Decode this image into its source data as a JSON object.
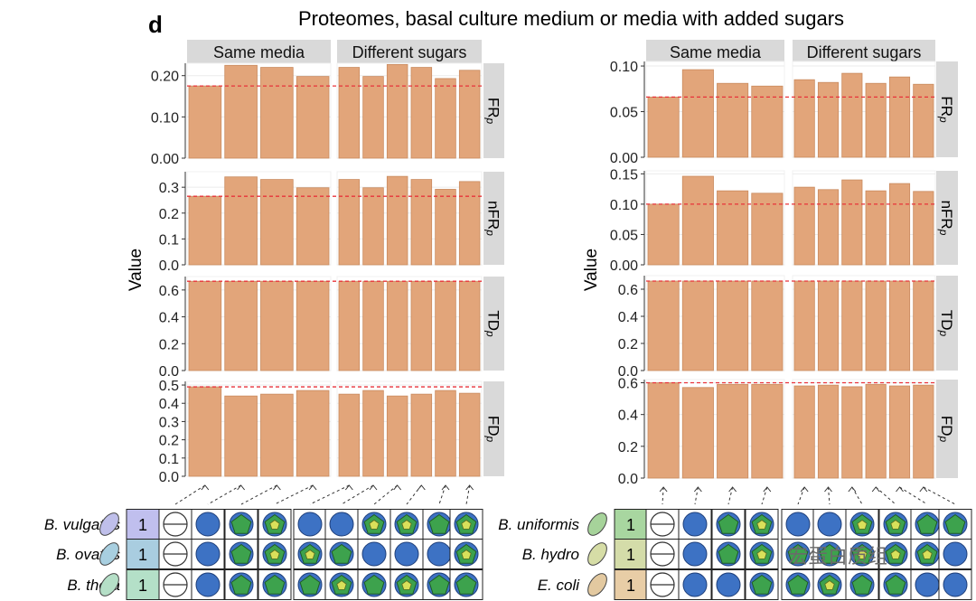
{
  "panel_letter": "d",
  "title": "Proteomes, basal culture medium or media with added sugars",
  "facet_columns": [
    "Same media",
    "Different sugars"
  ],
  "y_axis_label": "Value",
  "watermark": "宏蛋白质组",
  "colors": {
    "bar": "#E2A57A",
    "bar_edge": "#C98A5E",
    "ref_line": "#E8333A",
    "strip": "#D9D9D9",
    "grid": "#EBEBEB",
    "blue": "#3D72C4",
    "green": "#3DA24D",
    "yellow": "#D9E05A"
  },
  "chart_data": [
    {
      "type": "bar",
      "title": "Proteomes, basal culture medium or media with added sugars",
      "ylabel": "Value",
      "facets_x": [
        "Same media",
        "Different sugars"
      ],
      "rows": [
        {
          "label": "FRp",
          "ylim": [
            0,
            0.23
          ],
          "ticks": [
            0.0,
            0.1,
            0.2
          ],
          "tick_labels": [
            "0.00",
            "0.10",
            "0.20"
          ],
          "ref": 0.175,
          "same": [
            0.175,
            0.225,
            0.22,
            0.198
          ],
          "diff": [
            0.22,
            0.198,
            0.227,
            0.22,
            0.193,
            0.213
          ]
        },
        {
          "label": "nFRp",
          "ylim": [
            0,
            0.36
          ],
          "ticks": [
            0.0,
            0.1,
            0.2,
            0.3
          ],
          "tick_labels": [
            "0.0",
            "0.1",
            "0.2",
            "0.3"
          ],
          "ref": 0.265,
          "same": [
            0.265,
            0.34,
            0.33,
            0.298
          ],
          "diff": [
            0.33,
            0.298,
            0.342,
            0.33,
            0.292,
            0.322
          ]
        },
        {
          "label": "TDp",
          "ylim": [
            0,
            0.7
          ],
          "ticks": [
            0.0,
            0.2,
            0.4,
            0.6
          ],
          "tick_labels": [
            "0.0",
            "0.2",
            "0.4",
            "0.6"
          ],
          "ref": 0.665,
          "same": [
            0.665,
            0.665,
            0.665,
            0.665
          ],
          "diff": [
            0.665,
            0.665,
            0.665,
            0.665,
            0.665,
            0.665
          ]
        },
        {
          "label": "FDp",
          "ylim": [
            0,
            0.52
          ],
          "ticks": [
            0.0,
            0.1,
            0.2,
            0.3,
            0.4,
            0.5
          ],
          "tick_labels": [
            "0.0",
            "0.1",
            "0.2",
            "0.3",
            "0.4",
            "0.5"
          ],
          "ref": 0.49,
          "same": [
            0.49,
            0.44,
            0.45,
            0.47
          ],
          "diff": [
            0.45,
            0.47,
            0.44,
            0.45,
            0.47,
            0.455
          ]
        }
      ],
      "species": [
        "B. vulgatus",
        "B. ovatus",
        "B. theta"
      ],
      "species_number": [
        "1",
        "1",
        "1"
      ],
      "species_colors": [
        "#BFBFEA",
        "#A8CFE0",
        "#B5DFC7"
      ],
      "box_colors": [
        "#C0BFEE",
        "#A9CDE0",
        "#B4E0C8"
      ],
      "condition_grid": [
        [
          "none",
          "circle",
          "pentagon",
          "yellow",
          "circle",
          "circle",
          "yellow",
          "yellow",
          "pentagon",
          "yellow"
        ],
        [
          "none",
          "circle",
          "pentagon",
          "yellow",
          "yellow",
          "pentagon",
          "circle",
          "circle",
          "circle",
          "yellow"
        ],
        [
          "none",
          "circle",
          "pentagon",
          "pentagon",
          "pentagon",
          "yellow",
          "pentagon",
          "yellow",
          "pentagon",
          "pentagon"
        ]
      ]
    },
    {
      "type": "bar",
      "title": "Proteomes, basal culture medium or media with added sugars",
      "ylabel": "Value",
      "facets_x": [
        "Same media",
        "Different sugars"
      ],
      "rows": [
        {
          "label": "FRp",
          "ylim": [
            0,
            0.105
          ],
          "ticks": [
            0.0,
            0.05,
            0.1
          ],
          "tick_labels": [
            "0.00",
            "0.05",
            "0.10"
          ],
          "ref": 0.066,
          "same": [
            0.066,
            0.096,
            0.081,
            0.078
          ],
          "diff": [
            0.085,
            0.082,
            0.092,
            0.081,
            0.088,
            0.08
          ]
        },
        {
          "label": "nFRp",
          "ylim": [
            0,
            0.155
          ],
          "ticks": [
            0.0,
            0.05,
            0.1,
            0.15
          ],
          "tick_labels": [
            "0.00",
            "0.05",
            "0.10",
            "0.15"
          ],
          "ref": 0.1,
          "same": [
            0.1,
            0.146,
            0.122,
            0.118
          ],
          "diff": [
            0.128,
            0.124,
            0.14,
            0.122,
            0.134,
            0.121
          ]
        },
        {
          "label": "TDp",
          "ylim": [
            0,
            0.7
          ],
          "ticks": [
            0.0,
            0.2,
            0.4,
            0.6
          ],
          "tick_labels": [
            "0.0",
            "0.2",
            "0.4",
            "0.6"
          ],
          "ref": 0.66,
          "same": [
            0.66,
            0.66,
            0.66,
            0.66
          ],
          "diff": [
            0.66,
            0.66,
            0.66,
            0.66,
            0.66,
            0.66
          ]
        },
        {
          "label": "FDp",
          "ylim": [
            0,
            0.62
          ],
          "ticks": [
            0.0,
            0.2,
            0.4,
            0.6
          ],
          "tick_labels": [
            "0.0",
            "0.2",
            "0.4",
            "0.6"
          ],
          "ref": 0.6,
          "same": [
            0.6,
            0.57,
            0.59,
            0.59
          ],
          "diff": [
            0.58,
            0.585,
            0.575,
            0.59,
            0.58,
            0.585
          ]
        }
      ],
      "species": [
        "B. uniformis",
        "B. hydro",
        "E. coli"
      ],
      "species_number": [
        "1",
        "1",
        "1"
      ],
      "species_colors": [
        "#A6D39A",
        "#D6DDA6",
        "#E3C9A0"
      ],
      "box_colors": [
        "#A8D6A0",
        "#D4DCA9",
        "#E8CDA6"
      ],
      "condition_grid": [
        [
          "none",
          "circle",
          "pentagon",
          "yellow",
          "circle",
          "circle",
          "yellow",
          "yellow",
          "pentagon",
          "pentagon"
        ],
        [
          "none",
          "circle",
          "pentagon",
          "yellow",
          "pentagon",
          "pentagon",
          "yellow",
          "yellow",
          "yellow",
          "circle"
        ],
        [
          "none",
          "circle",
          "circle",
          "pentagon",
          "pentagon",
          "yellow",
          "pentagon",
          "pentagon",
          "circle",
          "circle"
        ]
      ]
    }
  ]
}
